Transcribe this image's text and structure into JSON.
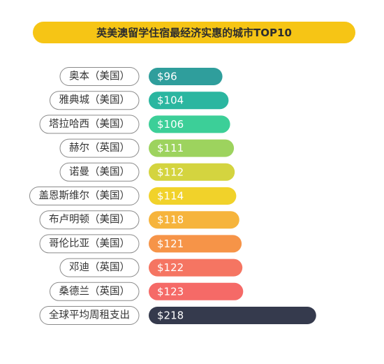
{
  "title": "英美澳留学住宿最经济实惠的城市TOP10",
  "chart_data": {
    "type": "bar",
    "orientation": "horizontal",
    "categories": [
      "奥本（美国）",
      "雅典城（美国）",
      "塔拉哈西（美国）",
      "赫尔（英国）",
      "诺曼（美国）",
      "盖恩斯维尔（美国）",
      "布卢明顿（美国）",
      "哥伦比亚（美国）",
      "邓迪（英国）",
      "桑德兰（英国）",
      "全球平均周租支出"
    ],
    "values": [
      96,
      104,
      106,
      111,
      112,
      114,
      118,
      121,
      122,
      123,
      218
    ],
    "value_labels": [
      "$96",
      "$104",
      "$106",
      "$111",
      "$112",
      "$114",
      "$118",
      "$121",
      "$122",
      "$123",
      "$218"
    ],
    "colors": [
      "#2f9e9c",
      "#2bb6a0",
      "#3ccf98",
      "#9dd35e",
      "#d4d43f",
      "#f1d22a",
      "#f6b43c",
      "#f69448",
      "#f57562",
      "#f56a67",
      "#353a4d"
    ],
    "title": "英美澳留学住宿最经济实惠的城市TOP10"
  }
}
